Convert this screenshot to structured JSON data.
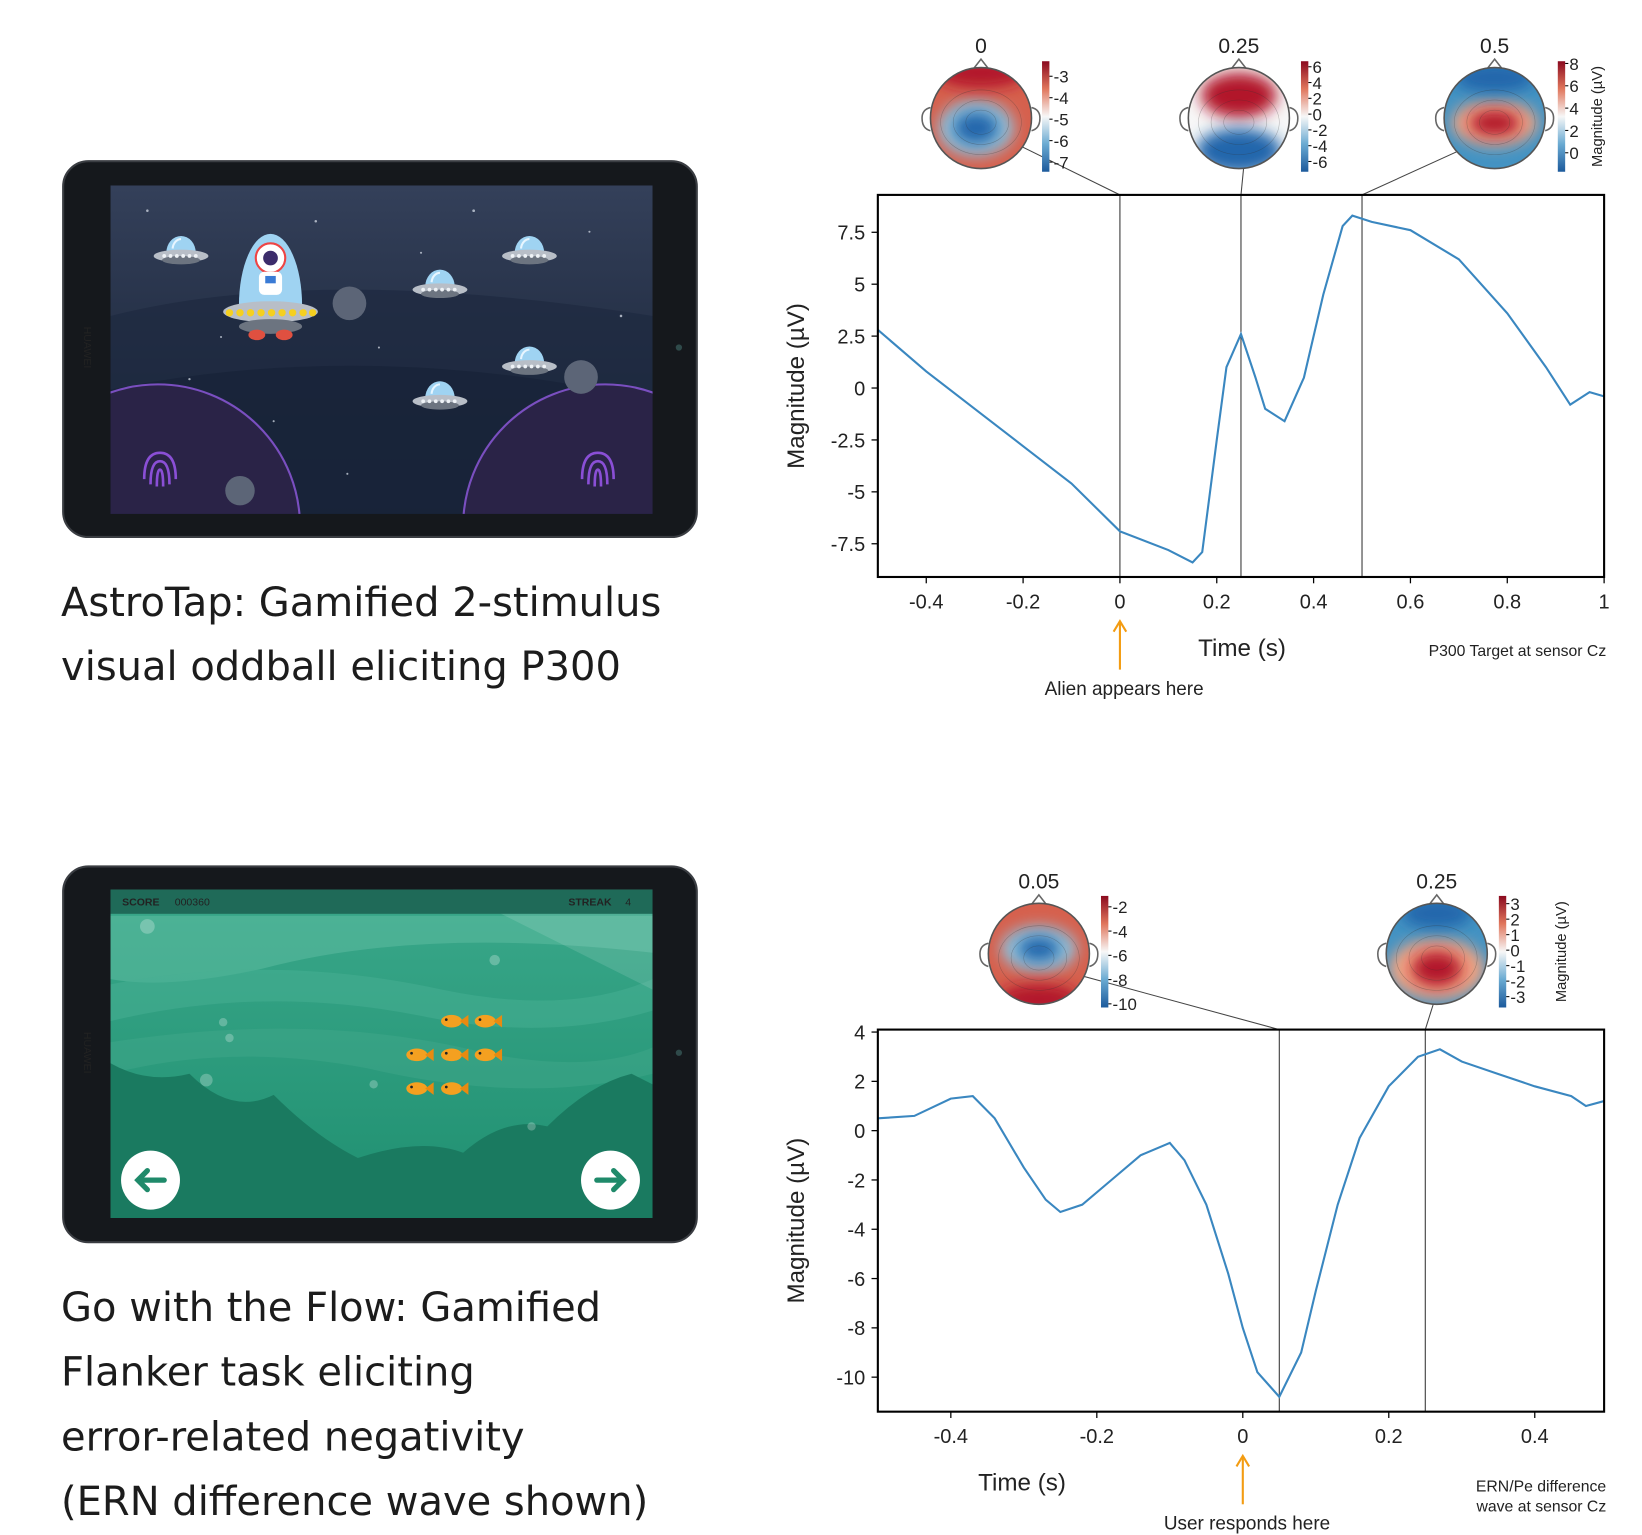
{
  "captions": [
    [
      "AstroTap: Gamified 2-stimulus",
      "visual oddball eliciting P300"
    ],
    [
      "Go with the Flow: Gamified",
      "Flanker task eliciting",
      "error-related negativity",
      "(ERN difference wave shown)"
    ]
  ],
  "tablets": [
    {
      "brand": "HUAWEI"
    },
    {
      "brand": "HUAWEI",
      "score_label": "SCORE",
      "score": "000360",
      "streak_label": "STREAK",
      "streak": "4"
    }
  ],
  "chart_data": [
    {
      "type": "line",
      "xlabel": "Time (s)",
      "ylabel": "Magnitude (µV)",
      "color": "#3a87c0",
      "x": [
        -0.5,
        -0.4,
        -0.3,
        -0.2,
        -0.1,
        0,
        0.1,
        0.15,
        0.17,
        0.2,
        0.22,
        0.25,
        0.28,
        0.3,
        0.34,
        0.38,
        0.42,
        0.46,
        0.48,
        0.52,
        0.6,
        0.7,
        0.8,
        0.88,
        0.93,
        0.97,
        1.0
      ],
      "values": [
        2.8,
        0.8,
        -1.0,
        -2.8,
        -4.6,
        -6.9,
        -7.8,
        -8.4,
        -7.9,
        -2.5,
        1.0,
        2.6,
        0.5,
        -1.0,
        -1.6,
        0.5,
        4.5,
        7.8,
        8.3,
        8.0,
        7.6,
        6.2,
        3.6,
        1.0,
        -0.8,
        -0.2,
        -0.4
      ],
      "xlim": [
        -0.5,
        1
      ],
      "ylim": [
        -9.1,
        9.3
      ],
      "xticks": [
        -0.4,
        -0.2,
        0,
        0.2,
        0.4,
        0.6,
        0.8,
        1
      ],
      "yticks": [
        -7.5,
        -5,
        -2.5,
        0,
        2.5,
        5,
        7.5
      ],
      "annotation": {
        "x": 0,
        "text": "Alien appears here",
        "color": "#f39c12"
      },
      "note": [
        "P300 Target at sensor Cz"
      ],
      "cbar_label": "Magnitude (µV)",
      "topomaps": [
        {
          "time": 0,
          "cbar_lim": [
            -7.45,
            -2.3
          ],
          "cbar_ticks": [
            -3,
            -4,
            -5,
            -6,
            -7
          ]
        },
        {
          "time": 0.25,
          "cbar_lim": [
            -7.3,
            6.7
          ],
          "cbar_ticks": [
            6,
            4,
            2,
            0,
            -2,
            -4,
            -6
          ]
        },
        {
          "time": 0.5,
          "cbar_lim": [
            -1.7,
            8.2
          ],
          "cbar_ticks": [
            8,
            6,
            4,
            2,
            0
          ]
        }
      ]
    },
    {
      "type": "line",
      "xlabel": "Time (s)",
      "ylabel": "Magnitude (µV)",
      "color": "#3a87c0",
      "x": [
        -0.5,
        -0.45,
        -0.4,
        -0.37,
        -0.34,
        -0.3,
        -0.27,
        -0.25,
        -0.22,
        -0.18,
        -0.14,
        -0.1,
        -0.08,
        -0.05,
        -0.02,
        0,
        0.02,
        0.05,
        0.08,
        0.1,
        0.13,
        0.16,
        0.2,
        0.24,
        0.27,
        0.3,
        0.35,
        0.4,
        0.45,
        0.47,
        0.495
      ],
      "values": [
        0.5,
        0.6,
        1.3,
        1.4,
        0.5,
        -1.5,
        -2.8,
        -3.3,
        -3.0,
        -2.0,
        -1.0,
        -0.5,
        -1.2,
        -3.0,
        -5.8,
        -8.0,
        -9.8,
        -10.8,
        -9.0,
        -6.5,
        -3.0,
        -0.3,
        1.8,
        3.0,
        3.3,
        2.8,
        2.3,
        1.8,
        1.4,
        1.0,
        1.2
      ],
      "xlim": [
        -0.5,
        0.495
      ],
      "ylim": [
        -11.4,
        4.1
      ],
      "xticks": [
        -0.4,
        -0.2,
        0,
        0.2,
        0.4
      ],
      "yticks": [
        -10,
        -8,
        -6,
        -4,
        -2,
        0,
        2,
        4
      ],
      "annotation": {
        "x": 0,
        "text": "User responds here",
        "color": "#f39c12"
      },
      "note": [
        "ERN/Pe difference",
        "wave at sensor Cz"
      ],
      "cbar_label": "Magnitude (µV)",
      "topomaps": [
        {
          "time": 0.05,
          "cbar_lim": [
            -10.3,
            -1.1
          ],
          "cbar_ticks": [
            -2,
            -4,
            -6,
            -8,
            -10
          ]
        },
        {
          "time": 0.25,
          "cbar_lim": [
            -3.7,
            3.5
          ],
          "cbar_ticks": [
            3,
            2,
            1,
            0,
            -1,
            -2,
            -3
          ]
        }
      ]
    }
  ]
}
